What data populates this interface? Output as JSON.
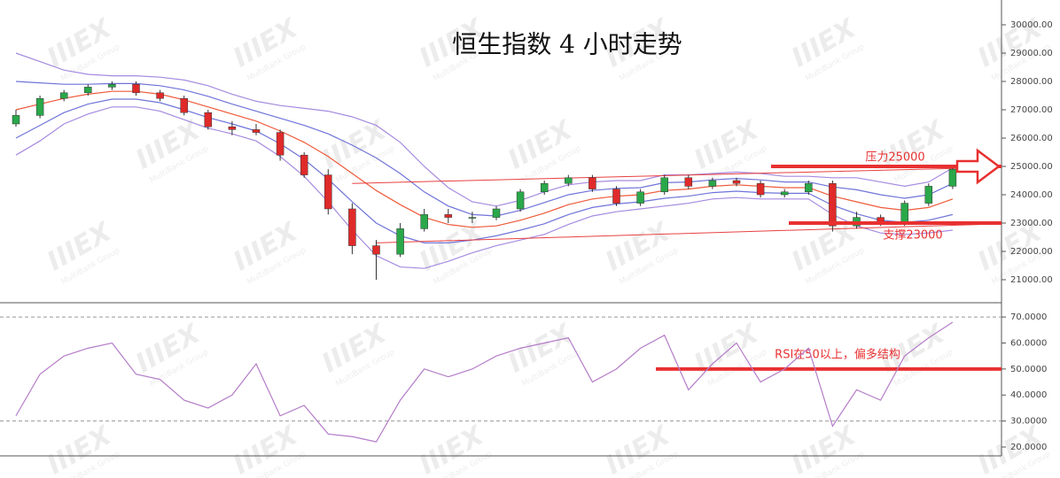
{
  "chart_data": [
    {
      "type": "candlestick",
      "title": "恒生指数 4 小时走势",
      "ohlc": [
        [
          26500,
          27000,
          26400,
          26800
        ],
        [
          26800,
          27500,
          26700,
          27400
        ],
        [
          27400,
          27700,
          27300,
          27600
        ],
        [
          27600,
          27900,
          27500,
          27800
        ],
        [
          27800,
          28000,
          27700,
          27900
        ],
        [
          27900,
          28000,
          27500,
          27600
        ],
        [
          27600,
          27700,
          27300,
          27400
        ],
        [
          27400,
          27500,
          26800,
          26900
        ],
        [
          26900,
          27000,
          26300,
          26400
        ],
        [
          26400,
          26600,
          26100,
          26300
        ],
        [
          26300,
          26500,
          26100,
          26200
        ],
        [
          26200,
          26300,
          25200,
          25400
        ],
        [
          25400,
          25500,
          24600,
          24700
        ],
        [
          24700,
          24900,
          23300,
          23500
        ],
        [
          23500,
          23700,
          21900,
          22200
        ],
        [
          22200,
          22400,
          21000,
          21900
        ],
        [
          21900,
          23000,
          21800,
          22800
        ],
        [
          22800,
          23500,
          22700,
          23300
        ],
        [
          23300,
          23500,
          23000,
          23200
        ],
        [
          23200,
          23400,
          23000,
          23200
        ],
        [
          23200,
          23600,
          23100,
          23500
        ],
        [
          23500,
          24200,
          23400,
          24100
        ],
        [
          24100,
          24500,
          24000,
          24400
        ],
        [
          24400,
          24700,
          24300,
          24600
        ],
        [
          24600,
          24700,
          24100,
          24200
        ],
        [
          24200,
          24300,
          23600,
          23700
        ],
        [
          23700,
          24200,
          23600,
          24100
        ],
        [
          24100,
          24700,
          24000,
          24600
        ],
        [
          24600,
          24700,
          24200,
          24300
        ],
        [
          24300,
          24600,
          24200,
          24500
        ],
        [
          24500,
          24600,
          24300,
          24400
        ],
        [
          24400,
          24500,
          23900,
          24000
        ],
        [
          24000,
          24200,
          23900,
          24100
        ],
        [
          24100,
          24500,
          24000,
          24400
        ],
        [
          24400,
          24500,
          22700,
          22900
        ],
        [
          22900,
          23400,
          22800,
          23200
        ],
        [
          23200,
          23300,
          22900,
          23000
        ],
        [
          23000,
          23800,
          22900,
          23700
        ],
        [
          23700,
          24400,
          23600,
          24300
        ],
        [
          24300,
          25000,
          24200,
          24900
        ]
      ],
      "up_color": "#2aa84a",
      "down_color": "#e02a2a",
      "bands": [
        {
          "color": "#a68ae0",
          "values": [
            29000,
            28700,
            28400,
            28250,
            28200,
            28200,
            28150,
            28050,
            27850,
            27550,
            27300,
            27150,
            27050,
            26950,
            26750,
            26450,
            25850,
            25000,
            24250,
            23750,
            23600,
            23800,
            24100,
            24350,
            24450,
            24500,
            24500,
            24700,
            24700,
            24750,
            24800,
            24750,
            24650,
            24650,
            24600,
            24600,
            24450,
            24300,
            24450,
            24950
          ]
        },
        {
          "color": "#6f74d8",
          "values": [
            28000,
            27950,
            27900,
            27900,
            27925,
            27925,
            27850,
            27700,
            27475,
            27200,
            26950,
            26700,
            26450,
            26150,
            25750,
            25300,
            24750,
            24100,
            23600,
            23300,
            23250,
            23450,
            23725,
            24000,
            24150,
            24225,
            24250,
            24425,
            24450,
            24525,
            24575,
            24525,
            24450,
            24450,
            24275,
            24175,
            24000,
            23875,
            24000,
            24400
          ]
        },
        {
          "color": "#ee5a3a",
          "values": [
            27000,
            27200,
            27400,
            27550,
            27650,
            27650,
            27550,
            27350,
            27100,
            26850,
            26600,
            26250,
            25850,
            25350,
            24750,
            24150,
            23650,
            23200,
            22950,
            22850,
            22900,
            23100,
            23350,
            23650,
            23850,
            23950,
            24000,
            24150,
            24200,
            24300,
            24350,
            24300,
            24250,
            24250,
            23950,
            23750,
            23550,
            23450,
            23550,
            23850
          ]
        },
        {
          "color": "#6f74d8",
          "values": [
            26000,
            26450,
            26900,
            27200,
            27375,
            27375,
            27250,
            27000,
            26725,
            26500,
            26250,
            25800,
            25250,
            24550,
            23750,
            23000,
            22550,
            22300,
            22300,
            22400,
            22550,
            22750,
            22975,
            23300,
            23550,
            23675,
            23750,
            23875,
            23950,
            24075,
            24125,
            24075,
            24050,
            24050,
            23625,
            23325,
            23100,
            23025,
            23100,
            23300
          ]
        },
        {
          "color": "#a68ae0",
          "values": [
            25400,
            25900,
            26500,
            26850,
            27100,
            27100,
            26950,
            26650,
            26350,
            26150,
            25900,
            25350,
            24650,
            23750,
            22750,
            21850,
            21450,
            21400,
            21650,
            21950,
            22200,
            22400,
            22600,
            22950,
            23250,
            23400,
            23500,
            23600,
            23700,
            23850,
            23900,
            23850,
            23850,
            23850,
            23300,
            22900,
            22650,
            22600,
            22650,
            22750
          ]
        }
      ],
      "trendlines": [
        {
          "x": [
            14,
            39
          ],
          "values": [
            24400,
            24950
          ]
        },
        {
          "x": [
            15,
            39
          ],
          "values": [
            22300,
            22950
          ]
        }
      ],
      "trendline_color": "#e84040",
      "levels": [
        {
          "value": 25000,
          "label": "压力25000"
        },
        {
          "value": 23000,
          "label": "支撑23000"
        }
      ],
      "level_color": "#e83030",
      "ylim": [
        20187,
        30875
      ],
      "yticks": [
        {
          "value": 21000,
          "label": "21000.00"
        },
        {
          "value": 22000,
          "label": "22000.00"
        },
        {
          "value": 23000,
          "label": "23000.00"
        },
        {
          "value": 24000,
          "label": "24000.00"
        },
        {
          "value": 25000,
          "label": "25000.00"
        },
        {
          "value": 26000,
          "label": "26000.00"
        },
        {
          "value": 27000,
          "label": "27000.00"
        },
        {
          "value": 28000,
          "label": "28000.00"
        },
        {
          "value": 29000,
          "label": "29000.00"
        },
        {
          "value": 30000,
          "label": "30000.00"
        }
      ]
    },
    {
      "type": "line",
      "color": "#b57cc8",
      "values": [
        32,
        48,
        55,
        58,
        60,
        48,
        46,
        38,
        35,
        40,
        52,
        32,
        36,
        25,
        24,
        22,
        38,
        50,
        47,
        50,
        55,
        58,
        60,
        62,
        45,
        50,
        58,
        63,
        42,
        52,
        60,
        45,
        50,
        58,
        28,
        42,
        38,
        55,
        62,
        68
      ],
      "guides": [
        30,
        70
      ],
      "levels": [
        {
          "value": 50,
          "label": "RSI在50以上，偏多结构"
        }
      ],
      "level_color": "#e83030",
      "ylim": [
        16.6,
        74.8
      ],
      "yticks": [
        {
          "value": 20,
          "label": "20.0000"
        },
        {
          "value": 30,
          "label": "30.0000"
        },
        {
          "value": 40,
          "label": "40.0000"
        },
        {
          "value": 50,
          "label": "50.0000"
        },
        {
          "value": 60,
          "label": "60.0000"
        },
        {
          "value": 70,
          "label": "70.0000"
        }
      ]
    }
  ],
  "watermark": {
    "logo": "IIIEX",
    "sub": "MultiBank Group"
  }
}
